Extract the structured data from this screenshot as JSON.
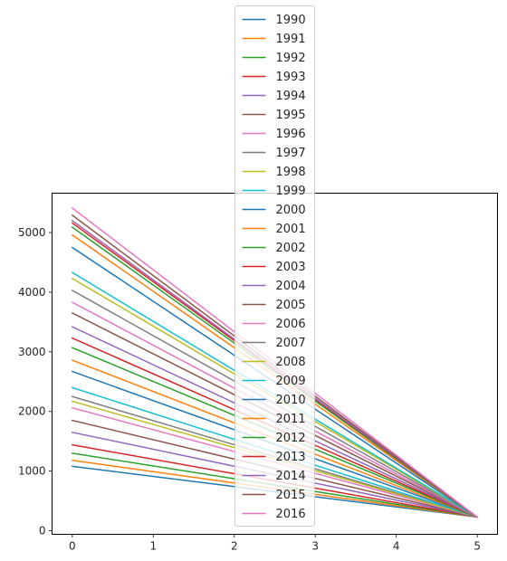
{
  "chart_data": {
    "type": "line",
    "title": "",
    "xlabel": "",
    "ylabel": "",
    "xlim": [
      -0.25,
      5.25
    ],
    "ylim": [
      -60,
      5660
    ],
    "xticks": [
      0,
      1,
      2,
      3,
      4,
      5
    ],
    "xtick_labels": [
      "0",
      "1",
      "2",
      "3",
      "4",
      "5"
    ],
    "yticks": [
      0,
      1000,
      2000,
      3000,
      4000,
      5000
    ],
    "ytick_labels": [
      "0",
      "1000",
      "2000",
      "3000",
      "4000",
      "5000"
    ],
    "grid": false,
    "legend_position": "upper center (extends above plot)",
    "series": [
      {
        "name": "1990",
        "color": "#1f77b4",
        "x": [
          0,
          5
        ],
        "y": [
          1080,
          230
        ]
      },
      {
        "name": "1991",
        "color": "#ff7f0e",
        "x": [
          0,
          5
        ],
        "y": [
          1180,
          230
        ]
      },
      {
        "name": "1992",
        "color": "#2ca02c",
        "x": [
          0,
          5
        ],
        "y": [
          1300,
          230
        ]
      },
      {
        "name": "1993",
        "color": "#d62728",
        "x": [
          0,
          5
        ],
        "y": [
          1440,
          230
        ]
      },
      {
        "name": "1994",
        "color": "#9467bd",
        "x": [
          0,
          5
        ],
        "y": [
          1650,
          230
        ]
      },
      {
        "name": "1995",
        "color": "#8c564b",
        "x": [
          0,
          5
        ],
        "y": [
          1850,
          230
        ]
      },
      {
        "name": "1996",
        "color": "#e377c2",
        "x": [
          0,
          5
        ],
        "y": [
          2060,
          230
        ]
      },
      {
        "name": "1997",
        "color": "#7f7f7f",
        "x": [
          0,
          5
        ],
        "y": [
          2250,
          230
        ]
      },
      {
        "name": "1998",
        "color": "#bcbd22",
        "x": [
          0,
          5
        ],
        "y": [
          2170,
          230
        ]
      },
      {
        "name": "1999",
        "color": "#17becf",
        "x": [
          0,
          5
        ],
        "y": [
          2400,
          230
        ]
      },
      {
        "name": "2000",
        "color": "#1f77b4",
        "x": [
          0,
          5
        ],
        "y": [
          2670,
          230
        ]
      },
      {
        "name": "2001",
        "color": "#ff7f0e",
        "x": [
          0,
          5
        ],
        "y": [
          2860,
          230
        ]
      },
      {
        "name": "2002",
        "color": "#2ca02c",
        "x": [
          0,
          5
        ],
        "y": [
          3070,
          230
        ]
      },
      {
        "name": "2003",
        "color": "#d62728",
        "x": [
          0,
          5
        ],
        "y": [
          3230,
          230
        ]
      },
      {
        "name": "2004",
        "color": "#9467bd",
        "x": [
          0,
          5
        ],
        "y": [
          3420,
          230
        ]
      },
      {
        "name": "2005",
        "color": "#8c564b",
        "x": [
          0,
          5
        ],
        "y": [
          3650,
          230
        ]
      },
      {
        "name": "2006",
        "color": "#e377c2",
        "x": [
          0,
          5
        ],
        "y": [
          3830,
          230
        ]
      },
      {
        "name": "2007",
        "color": "#7f7f7f",
        "x": [
          0,
          5
        ],
        "y": [
          4030,
          230
        ]
      },
      {
        "name": "2008",
        "color": "#bcbd22",
        "x": [
          0,
          5
        ],
        "y": [
          4230,
          230
        ]
      },
      {
        "name": "2009",
        "color": "#17becf",
        "x": [
          0,
          5
        ],
        "y": [
          4330,
          230
        ]
      },
      {
        "name": "2010",
        "color": "#1f77b4",
        "x": [
          0,
          5
        ],
        "y": [
          4750,
          230
        ]
      },
      {
        "name": "2011",
        "color": "#ff7f0e",
        "x": [
          0,
          5
        ],
        "y": [
          4960,
          230
        ]
      },
      {
        "name": "2012",
        "color": "#2ca02c",
        "x": [
          0,
          5
        ],
        "y": [
          5090,
          230
        ]
      },
      {
        "name": "2013",
        "color": "#d62728",
        "x": [
          0,
          5
        ],
        "y": [
          5160,
          230
        ]
      },
      {
        "name": "2014",
        "color": "#9467bd",
        "x": [
          0,
          5
        ],
        "y": [
          5200,
          230
        ]
      },
      {
        "name": "2015",
        "color": "#8c564b",
        "x": [
          0,
          5
        ],
        "y": [
          5290,
          230
        ]
      },
      {
        "name": "2016",
        "color": "#e377c2",
        "x": [
          0,
          5
        ],
        "y": [
          5410,
          230
        ]
      }
    ]
  }
}
